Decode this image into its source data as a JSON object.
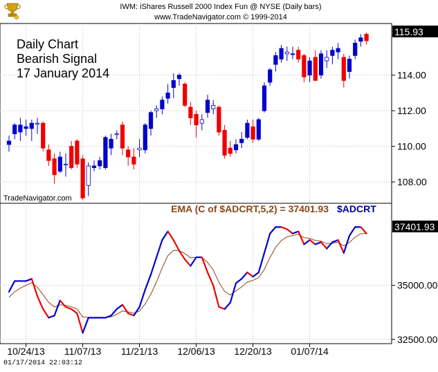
{
  "header": {
    "title_line": "IWM:  iShares Russell 2000 Index Fun @ NYSE  (Daily bars)",
    "copyright_line": "www.TradeNavigator.com © 1999-2014"
  },
  "annotation": {
    "line1": "Daily Chart",
    "line2": "Bearish Signal",
    "line3": "17 January 2014"
  },
  "watermark": "TradeNavigator.com",
  "timestamp": "01/17/2014  22:03:12",
  "colors": {
    "up": "#0000cc",
    "down": "#ee0000",
    "neutral": "#ffffff",
    "ema": "#8b4513",
    "indicator_label": "#8b4513",
    "indicator_name": "#000099",
    "grid": "#bfbfbf"
  },
  "chart_data": [
    {
      "type": "candlestick",
      "title": "IWM:  iShares Russell 2000 Index Fun @ NYSE  (Daily bars)",
      "ylim": [
        106.8,
        116.9
      ],
      "yticks": [
        "108.00",
        "110.00",
        "112.00",
        "114.00"
      ],
      "last_value_label": "115.93",
      "last_value": 115.93,
      "dates": [
        "10/24/13",
        "11/07/13",
        "11/21/13",
        "12/06/13",
        "12/20/13",
        "01/07/14"
      ],
      "date_indices": [
        3,
        13,
        23,
        33,
        43,
        53
      ],
      "bars": [
        {
          "o": 110.1,
          "h": 110.6,
          "l": 109.7,
          "c": 110.3,
          "d": "up"
        },
        {
          "o": 110.7,
          "h": 111.3,
          "l": 110.4,
          "c": 111.2,
          "d": "up"
        },
        {
          "o": 110.8,
          "h": 111.6,
          "l": 110.3,
          "c": 111.2,
          "d": "up"
        },
        {
          "o": 111.0,
          "h": 111.5,
          "l": 110.6,
          "c": 111.1,
          "d": "up"
        },
        {
          "o": 111.0,
          "h": 111.5,
          "l": 110.3,
          "c": 111.3,
          "d": "up"
        },
        {
          "o": 111.3,
          "h": 111.6,
          "l": 110.7,
          "c": 111.3,
          "d": "neutral"
        },
        {
          "o": 111.3,
          "h": 111.4,
          "l": 109.7,
          "c": 109.9,
          "d": "down"
        },
        {
          "o": 109.8,
          "h": 110.1,
          "l": 108.9,
          "c": 109.2,
          "d": "down"
        },
        {
          "o": 109.3,
          "h": 109.6,
          "l": 107.9,
          "c": 108.4,
          "d": "down"
        },
        {
          "o": 108.6,
          "h": 109.7,
          "l": 108.5,
          "c": 109.4,
          "d": "up"
        },
        {
          "o": 109.0,
          "h": 109.6,
          "l": 108.3,
          "c": 109.0,
          "d": "neutral"
        },
        {
          "o": 110.0,
          "h": 110.3,
          "l": 108.7,
          "c": 108.8,
          "d": "down"
        },
        {
          "o": 110.3,
          "h": 110.4,
          "l": 108.8,
          "c": 109.0,
          "d": "down"
        },
        {
          "o": 109.3,
          "h": 109.5,
          "l": 107.0,
          "c": 107.1,
          "d": "down"
        },
        {
          "o": 107.8,
          "h": 109.1,
          "l": 107.2,
          "c": 108.9,
          "d": "neutral"
        },
        {
          "o": 108.9,
          "h": 109.2,
          "l": 108.6,
          "c": 108.8,
          "d": "up"
        },
        {
          "o": 108.9,
          "h": 109.4,
          "l": 108.7,
          "c": 109.2,
          "d": "up"
        },
        {
          "o": 108.8,
          "h": 110.6,
          "l": 108.7,
          "c": 110.5,
          "d": "up"
        },
        {
          "o": 109.9,
          "h": 110.7,
          "l": 109.5,
          "c": 110.4,
          "d": "up"
        },
        {
          "o": 110.7,
          "h": 110.9,
          "l": 110.4,
          "c": 110.7,
          "d": "neutral"
        },
        {
          "o": 111.2,
          "h": 111.4,
          "l": 109.5,
          "c": 109.9,
          "d": "down"
        },
        {
          "o": 109.8,
          "h": 110.0,
          "l": 108.9,
          "c": 109.4,
          "d": "down"
        },
        {
          "o": 109.4,
          "h": 109.9,
          "l": 108.7,
          "c": 109.0,
          "d": "down"
        },
        {
          "o": 109.9,
          "h": 110.4,
          "l": 109.4,
          "c": 109.8,
          "d": "neutral"
        },
        {
          "o": 109.8,
          "h": 111.3,
          "l": 109.6,
          "c": 111.2,
          "d": "up"
        },
        {
          "o": 111.0,
          "h": 112.0,
          "l": 110.6,
          "c": 111.9,
          "d": "up"
        },
        {
          "o": 112.0,
          "h": 112.3,
          "l": 111.6,
          "c": 112.1,
          "d": "neutral"
        },
        {
          "o": 112.1,
          "h": 112.8,
          "l": 111.8,
          "c": 112.6,
          "d": "up"
        },
        {
          "o": 112.7,
          "h": 113.5,
          "l": 112.4,
          "c": 113.0,
          "d": "up"
        },
        {
          "o": 113.3,
          "h": 114.1,
          "l": 112.7,
          "c": 113.7,
          "d": "up"
        },
        {
          "o": 113.8,
          "h": 114.1,
          "l": 113.4,
          "c": 114.0,
          "d": "up"
        },
        {
          "o": 113.5,
          "h": 113.6,
          "l": 112.2,
          "c": 112.3,
          "d": "down"
        },
        {
          "o": 112.2,
          "h": 112.5,
          "l": 111.2,
          "c": 111.6,
          "d": "down"
        },
        {
          "o": 111.8,
          "h": 112.0,
          "l": 110.5,
          "c": 111.2,
          "d": "down"
        },
        {
          "o": 111.3,
          "h": 111.8,
          "l": 110.9,
          "c": 111.5,
          "d": "neutral"
        },
        {
          "o": 111.9,
          "h": 112.9,
          "l": 111.6,
          "c": 112.6,
          "d": "up"
        },
        {
          "o": 112.3,
          "h": 112.6,
          "l": 111.8,
          "c": 112.1,
          "d": "neutral"
        },
        {
          "o": 112.2,
          "h": 112.3,
          "l": 110.6,
          "c": 110.8,
          "d": "down"
        },
        {
          "o": 110.9,
          "h": 111.2,
          "l": 109.3,
          "c": 109.5,
          "d": "down"
        },
        {
          "o": 109.9,
          "h": 110.3,
          "l": 109.4,
          "c": 109.6,
          "d": "down"
        },
        {
          "o": 109.8,
          "h": 110.4,
          "l": 109.6,
          "c": 110.1,
          "d": "up"
        },
        {
          "o": 110.2,
          "h": 110.8,
          "l": 109.9,
          "c": 110.4,
          "d": "up"
        },
        {
          "o": 110.5,
          "h": 111.5,
          "l": 110.4,
          "c": 111.3,
          "d": "up"
        },
        {
          "o": 111.1,
          "h": 111.5,
          "l": 110.2,
          "c": 110.4,
          "d": "down"
        },
        {
          "o": 110.4,
          "h": 111.6,
          "l": 110.3,
          "c": 111.5,
          "d": "up"
        },
        {
          "o": 112.0,
          "h": 113.6,
          "l": 111.9,
          "c": 113.4,
          "d": "up"
        },
        {
          "o": 113.6,
          "h": 114.4,
          "l": 113.4,
          "c": 114.3,
          "d": "up"
        },
        {
          "o": 114.6,
          "h": 115.3,
          "l": 114.2,
          "c": 115.1,
          "d": "up"
        },
        {
          "o": 114.9,
          "h": 115.7,
          "l": 114.7,
          "c": 115.5,
          "d": "up"
        },
        {
          "o": 115.3,
          "h": 115.6,
          "l": 114.8,
          "c": 115.2,
          "d": "neutral"
        },
        {
          "o": 115.2,
          "h": 115.6,
          "l": 114.9,
          "c": 115.2,
          "d": "up"
        },
        {
          "o": 115.4,
          "h": 115.6,
          "l": 114.7,
          "c": 114.9,
          "d": "down"
        },
        {
          "o": 115.1,
          "h": 115.2,
          "l": 113.6,
          "c": 113.9,
          "d": "down"
        },
        {
          "o": 114.0,
          "h": 115.0,
          "l": 113.6,
          "c": 114.8,
          "d": "up"
        },
        {
          "o": 115.0,
          "h": 115.4,
          "l": 113.7,
          "c": 113.7,
          "d": "down"
        },
        {
          "o": 114.0,
          "h": 115.4,
          "l": 113.8,
          "c": 115.2,
          "d": "up"
        },
        {
          "o": 114.8,
          "h": 115.4,
          "l": 114.4,
          "c": 115.0,
          "d": "neutral"
        },
        {
          "o": 115.1,
          "h": 115.6,
          "l": 114.6,
          "c": 115.4,
          "d": "up"
        },
        {
          "o": 115.3,
          "h": 115.8,
          "l": 114.9,
          "c": 115.5,
          "d": "up"
        },
        {
          "o": 115.0,
          "h": 115.2,
          "l": 113.3,
          "c": 113.7,
          "d": "down"
        },
        {
          "o": 114.2,
          "h": 115.1,
          "l": 113.8,
          "c": 114.9,
          "d": "up"
        },
        {
          "o": 115.1,
          "h": 116.0,
          "l": 114.9,
          "c": 115.8,
          "d": "up"
        },
        {
          "o": 115.9,
          "h": 116.3,
          "l": 115.6,
          "c": 116.1,
          "d": "up"
        },
        {
          "o": 116.3,
          "h": 116.4,
          "l": 115.7,
          "c": 115.93,
          "d": "down"
        }
      ]
    },
    {
      "type": "line",
      "label_formula": "EMA (C of $ADCRT,5,2) = 37401.93",
      "label_symbol": "$ADCRT",
      "ylim": [
        32300,
        38800
      ],
      "yticks": [
        "32500.00",
        "35000.00"
      ],
      "last_value_label": "37401.93",
      "last_value": 37401.93,
      "series": [
        {
          "name": "$ADCRT",
          "values": [
            34700,
            35200,
            35200,
            35200,
            35300,
            34500,
            33900,
            33500,
            33600,
            34300,
            34000,
            33900,
            33700,
            32800,
            33500,
            33500,
            33500,
            33500,
            33600,
            33900,
            34100,
            33700,
            33600,
            34000,
            34800,
            35500,
            36300,
            37100,
            37500,
            37100,
            36600,
            36200,
            35900,
            36300,
            36300,
            35600,
            35000,
            34000,
            33900,
            34200,
            35100,
            35300,
            35600,
            35400,
            35600,
            36500,
            37400,
            37700,
            37700,
            37600,
            37400,
            37500,
            36900,
            37100,
            36900,
            37000,
            36700,
            37000,
            37100,
            36500,
            37300,
            37700,
            37700,
            37400
          ]
        },
        {
          "name": "EMA",
          "values": [
            34450,
            34700,
            34870,
            35000,
            35120,
            34910,
            34570,
            34210,
            34000,
            34100,
            34070,
            34010,
            33900,
            33530,
            33520,
            33510,
            33510,
            33510,
            33540,
            33660,
            33810,
            33770,
            33710,
            33810,
            34140,
            34590,
            35160,
            35810,
            36380,
            36620,
            36610,
            36470,
            36280,
            36290,
            36290,
            36060,
            35710,
            35140,
            34720,
            34550,
            34740,
            34930,
            35150,
            35230,
            35360,
            35740,
            36290,
            36760,
            37070,
            37250,
            37300,
            37370,
            37210,
            37170,
            37080,
            37050,
            36930,
            36950,
            37000,
            36830,
            36990,
            37230,
            37390,
            37400
          ]
        }
      ]
    }
  ]
}
